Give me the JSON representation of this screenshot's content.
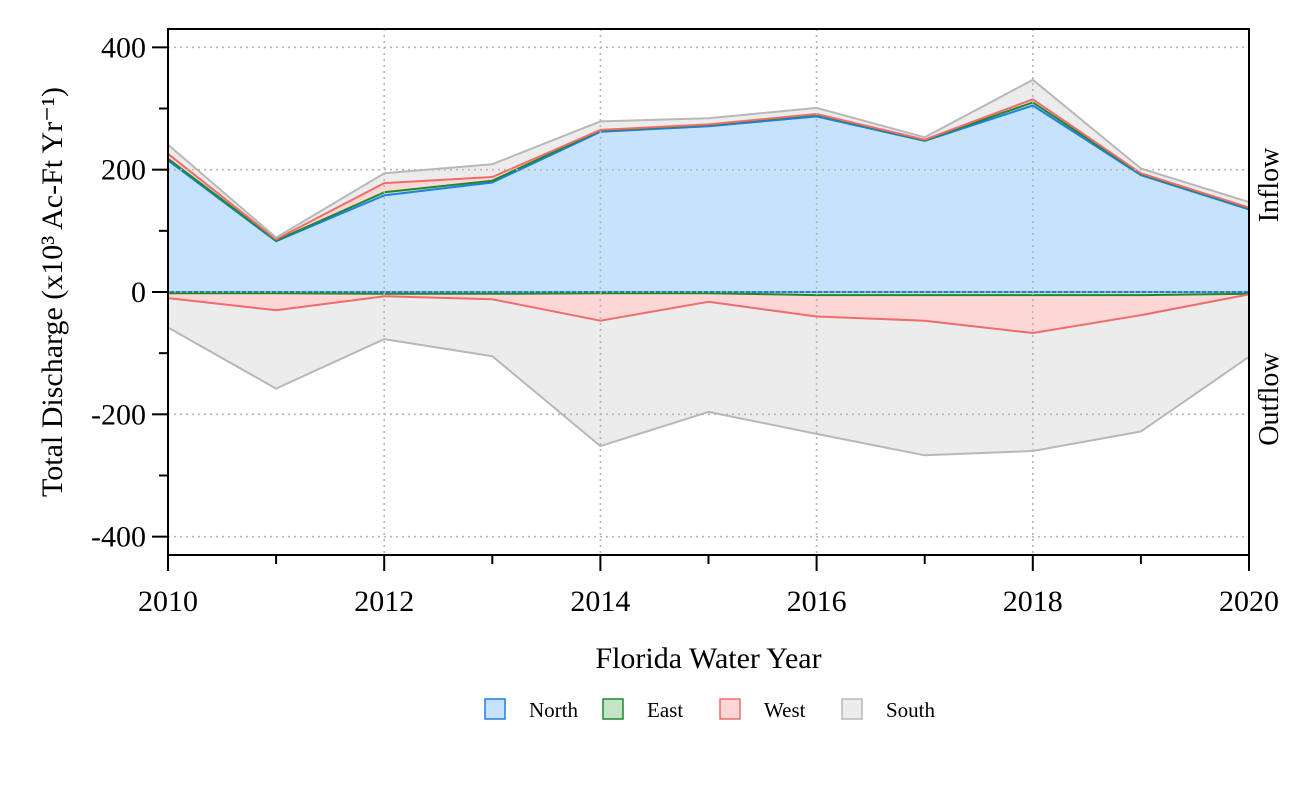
{
  "chart_data": {
    "type": "area",
    "xlabel": "Florida Water Year",
    "ylabel": "Total Discharge (x10³ Ac-Ft Yr⁻¹)",
    "xlim": [
      2010,
      2020
    ],
    "ylim": [
      -430,
      430
    ],
    "x_ticks": [
      2010,
      2012,
      2014,
      2016,
      2018,
      2020
    ],
    "y_ticks": [
      -400,
      -200,
      0,
      200,
      400
    ],
    "y_tick_labels": [
      "-400",
      "-200",
      "0",
      "200",
      "400"
    ],
    "grid": true,
    "legend_position": "bottom",
    "annotations": {
      "inflow": "Inflow",
      "outflow": "Outflow"
    },
    "x": [
      2010,
      2011,
      2012,
      2013,
      2014,
      2015,
      2016,
      2017,
      2018,
      2019,
      2020
    ],
    "inflow_series": [
      {
        "name": "North",
        "values": [
          215,
          83,
          158,
          179,
          262,
          271,
          287,
          247,
          305,
          191,
          135
        ]
      },
      {
        "name": "East",
        "values": [
          3,
          1,
          5,
          3,
          2,
          2,
          3,
          1,
          5,
          2,
          2
        ]
      },
      {
        "name": "West",
        "values": [
          8,
          2,
          15,
          6,
          1,
          1,
          1,
          1,
          5,
          1,
          1
        ]
      },
      {
        "name": "South",
        "values": [
          15,
          3,
          16,
          21,
          14,
          10,
          10,
          4,
          32,
          8,
          9
        ]
      }
    ],
    "outflow_series": [
      {
        "name": "North",
        "values": [
          0,
          0,
          0,
          0,
          0,
          0,
          0,
          0,
          0,
          0,
          0
        ]
      },
      {
        "name": "East",
        "values": [
          -2,
          -2,
          -3,
          -3,
          -2,
          -2,
          -5,
          -5,
          -5,
          -5,
          -3
        ]
      },
      {
        "name": "West",
        "values": [
          -8,
          -28,
          -4,
          -9,
          -45,
          -14,
          -35,
          -42,
          -62,
          -33,
          -1
        ]
      },
      {
        "name": "South",
        "values": [
          -48,
          -128,
          -70,
          -93,
          -205,
          -180,
          -192,
          -220,
          -193,
          -190,
          -102
        ]
      }
    ],
    "colors": {
      "North": {
        "fill": "#c7e3fb",
        "line": "#1f7fe5"
      },
      "East": {
        "fill": "#c5e4c6",
        "line": "#1c8a2b"
      },
      "West": {
        "fill": "#fdd6d6",
        "line": "#ef6c6c"
      },
      "South": {
        "fill": "#ececec",
        "line": "#b8b8b8"
      }
    },
    "legend": [
      "North",
      "East",
      "West",
      "South"
    ]
  }
}
